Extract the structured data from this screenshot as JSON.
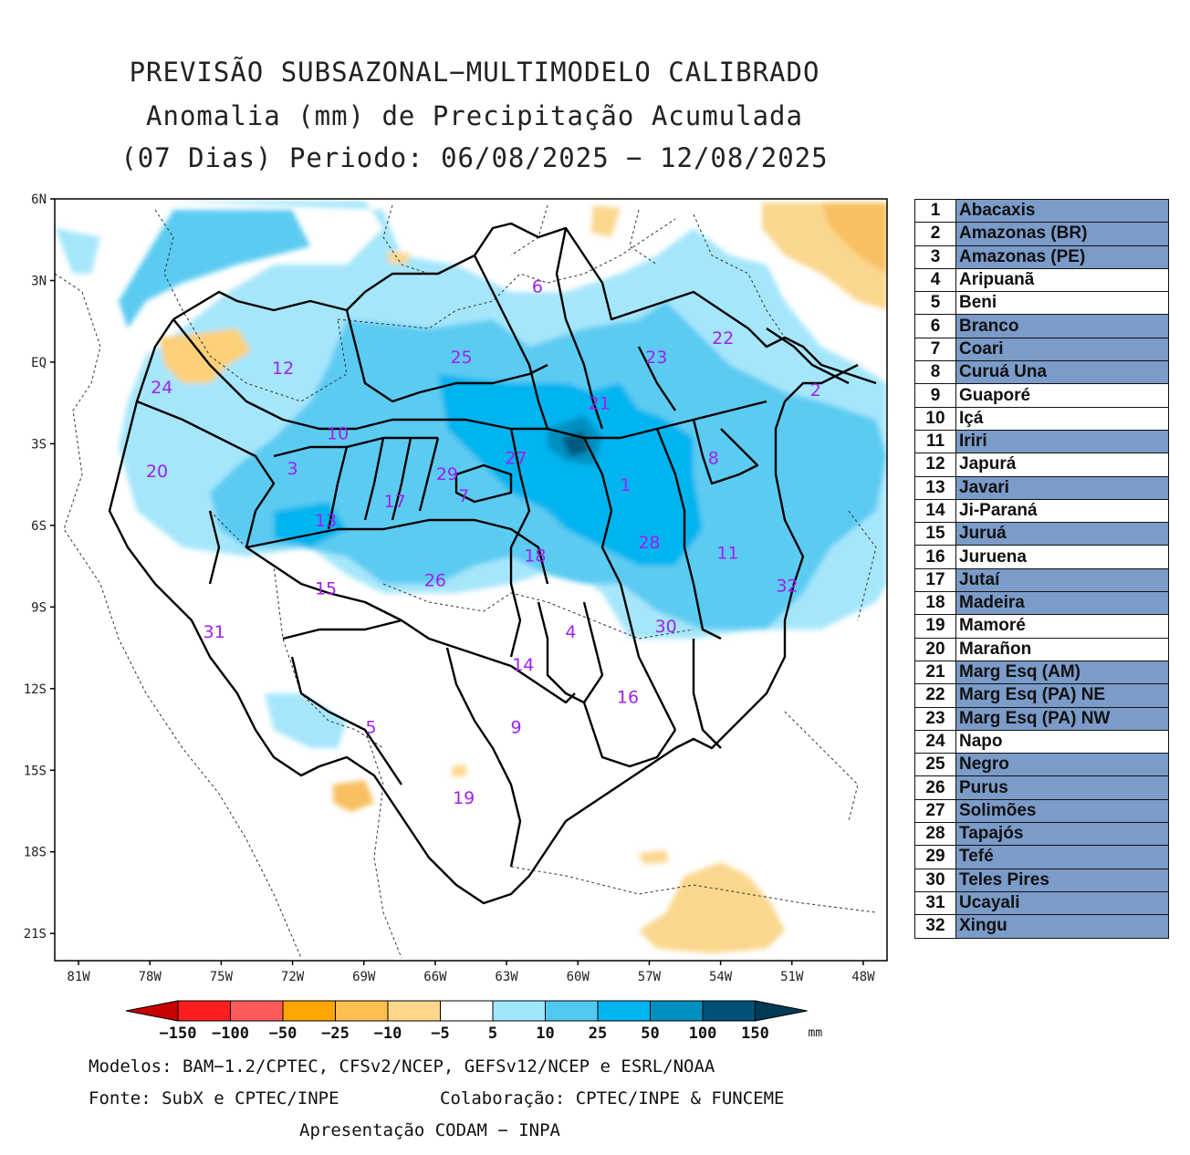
{
  "title": {
    "line1": "PREVISÃO SUBSAZONAL−MULTIMODELO CALIBRADO",
    "line2": "Anomalia (mm) de Precipitação Acumulada",
    "line3": "(07 Dias) Periodo: 06/08/2025 − 12/08/2025"
  },
  "map": {
    "lat_ticks": [
      "6N",
      "3N",
      "EQ",
      "3S",
      "6S",
      "9S",
      "12S",
      "15S",
      "18S",
      "21S"
    ],
    "lon_ticks": [
      "81W",
      "78W",
      "75W",
      "72W",
      "69W",
      "66W",
      "63W",
      "60W",
      "57W",
      "54W",
      "51W",
      "48W"
    ],
    "lat_range": [
      -22.0,
      6.0
    ],
    "lon_range": [
      -82.0,
      -47.0
    ],
    "basin_labels": [
      {
        "id": "1",
        "lon": -58.0,
        "lat": -4.5
      },
      {
        "id": "2",
        "lon": -50.0,
        "lat": -1.0
      },
      {
        "id": "3",
        "lon": -72.0,
        "lat": -3.9
      },
      {
        "id": "4",
        "lon": -60.3,
        "lat": -9.9
      },
      {
        "id": "5",
        "lon": -68.7,
        "lat": -13.4
      },
      {
        "id": "6",
        "lon": -61.7,
        "lat": 2.8
      },
      {
        "id": "7",
        "lon": -64.8,
        "lat": -4.9
      },
      {
        "id": "8",
        "lon": -54.3,
        "lat": -3.5
      },
      {
        "id": "9",
        "lon": -62.6,
        "lat": -13.4
      },
      {
        "id": "10",
        "lon": -70.1,
        "lat": -2.6
      },
      {
        "id": "11",
        "lon": -53.7,
        "lat": -7.0
      },
      {
        "id": "12",
        "lon": -72.4,
        "lat": -0.2
      },
      {
        "id": "13",
        "lon": -70.6,
        "lat": -5.8
      },
      {
        "id": "14",
        "lon": -62.3,
        "lat": -11.1
      },
      {
        "id": "15",
        "lon": -70.6,
        "lat": -8.3
      },
      {
        "id": "16",
        "lon": -57.9,
        "lat": -12.3
      },
      {
        "id": "17",
        "lon": -67.7,
        "lat": -5.1
      },
      {
        "id": "18",
        "lon": -61.8,
        "lat": -7.1
      },
      {
        "id": "19",
        "lon": -64.8,
        "lat": -16.0
      },
      {
        "id": "20",
        "lon": -77.7,
        "lat": -4.0
      },
      {
        "id": "21",
        "lon": -59.1,
        "lat": -1.5
      },
      {
        "id": "22",
        "lon": -53.9,
        "lat": 0.9
      },
      {
        "id": "23",
        "lon": -56.7,
        "lat": 0.2
      },
      {
        "id": "24",
        "lon": -77.5,
        "lat": -0.9
      },
      {
        "id": "25",
        "lon": -64.9,
        "lat": 0.2
      },
      {
        "id": "26",
        "lon": -66.0,
        "lat": -8.0
      },
      {
        "id": "27",
        "lon": -62.6,
        "lat": -3.5
      },
      {
        "id": "28",
        "lon": -57.0,
        "lat": -6.6
      },
      {
        "id": "29",
        "lon": -65.5,
        "lat": -4.1
      },
      {
        "id": "30",
        "lon": -56.3,
        "lat": -9.7
      },
      {
        "id": "31",
        "lon": -75.3,
        "lat": -9.9
      },
      {
        "id": "32",
        "lon": -51.2,
        "lat": -8.2
      }
    ]
  },
  "colorbar": {
    "labels": [
      "−150",
      "−100",
      "−50",
      "−25",
      "−10",
      "−5",
      "5",
      "10",
      "25",
      "50",
      "100",
      "150"
    ],
    "unit": "mm",
    "colors": [
      "#c80000",
      "#ff1e1e",
      "#ff5a5a",
      "#ffa500",
      "#ffbe50",
      "#ffd78c",
      "#ffffff",
      "#a0e6ff",
      "#50c8f0",
      "#00b4f0",
      "#0090c0",
      "#005078",
      "#003a55"
    ]
  },
  "legend": {
    "rows": [
      {
        "num": "1",
        "name": "Abacaxis",
        "highlight": true
      },
      {
        "num": "2",
        "name": "Amazonas (BR)",
        "highlight": true
      },
      {
        "num": "3",
        "name": "Amazonas (PE)",
        "highlight": true
      },
      {
        "num": "4",
        "name": "Aripuanã",
        "highlight": false
      },
      {
        "num": "5",
        "name": "Beni",
        "highlight": false
      },
      {
        "num": "6",
        "name": "Branco",
        "highlight": true
      },
      {
        "num": "7",
        "name": "Coari",
        "highlight": true
      },
      {
        "num": "8",
        "name": "Curuá Una",
        "highlight": true
      },
      {
        "num": "9",
        "name": "Guaporé",
        "highlight": false
      },
      {
        "num": "10",
        "name": "Içá",
        "highlight": false
      },
      {
        "num": "11",
        "name": "Iriri",
        "highlight": true
      },
      {
        "num": "12",
        "name": "Japurá",
        "highlight": false
      },
      {
        "num": "13",
        "name": "Javari",
        "highlight": true
      },
      {
        "num": "14",
        "name": "Ji-Paraná",
        "highlight": false
      },
      {
        "num": "15",
        "name": "Juruá",
        "highlight": true
      },
      {
        "num": "16",
        "name": "Juruena",
        "highlight": false
      },
      {
        "num": "17",
        "name": "Jutaí",
        "highlight": true
      },
      {
        "num": "18",
        "name": "Madeira",
        "highlight": true
      },
      {
        "num": "19",
        "name": "Mamoré",
        "highlight": false
      },
      {
        "num": "20",
        "name": "Marañon",
        "highlight": false
      },
      {
        "num": "21",
        "name": "Marg Esq (AM)",
        "highlight": true
      },
      {
        "num": "22",
        "name": "Marg Esq (PA) NE",
        "highlight": true
      },
      {
        "num": "23",
        "name": "Marg Esq (PA) NW",
        "highlight": true
      },
      {
        "num": "24",
        "name": "Napo",
        "highlight": false
      },
      {
        "num": "25",
        "name": "Negro",
        "highlight": true
      },
      {
        "num": "26",
        "name": "Purus",
        "highlight": true
      },
      {
        "num": "27",
        "name": "Solimões",
        "highlight": true
      },
      {
        "num": "28",
        "name": "Tapajós",
        "highlight": true
      },
      {
        "num": "29",
        "name": "Tefé",
        "highlight": true
      },
      {
        "num": "30",
        "name": "Teles Pires",
        "highlight": true
      },
      {
        "num": "31",
        "name": "Ucayali",
        "highlight": true
      },
      {
        "num": "32",
        "name": "Xingu",
        "highlight": true
      }
    ]
  },
  "footer": {
    "models": "Modelos: BAM−1.2/CPTEC, CFSv2/NCEP, GEFSv12/NCEP e ESRL/NOAA",
    "source": "Fonte: SubX e CPTEC/INPE",
    "collab": "Colaboração: CPTEC/INPE & FUNCEME",
    "presentation": "Apresentação CODAM − INPA"
  }
}
